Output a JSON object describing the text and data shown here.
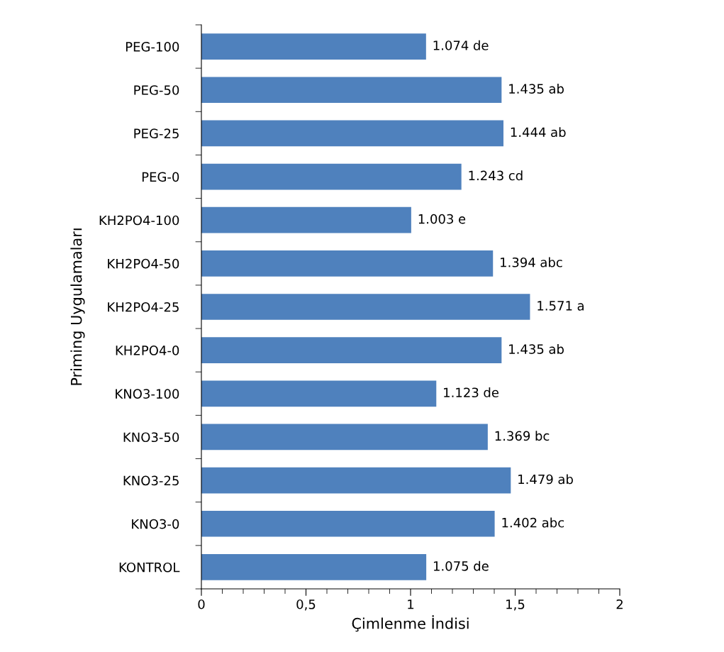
{
  "chart_data": {
    "type": "bar",
    "orientation": "horizontal",
    "xlabel": "Çimlenme İndisi",
    "ylabel": "Priming Uygulamaları",
    "categories": [
      "PEG-100",
      "PEG-50",
      "PEG-25",
      "PEG-0",
      "KH2PO4-100",
      "KH2PO4-50",
      "KH2PO4-25",
      "KH2PO4-0",
      "KNO3-100",
      "KNO3-50",
      "KNO3-25",
      "KNO3-0",
      "KONTROL"
    ],
    "values": [
      1.074,
      1.435,
      1.444,
      1.243,
      1.003,
      1.394,
      1.571,
      1.435,
      1.123,
      1.369,
      1.479,
      1.402,
      1.075
    ],
    "data_labels": true,
    "annotations": [
      "de",
      "ab",
      "ab",
      "cd",
      "e",
      "abc",
      "a",
      "ab",
      "de",
      "bc",
      "ab",
      "abc",
      "de"
    ],
    "color": "#4f81bd",
    "xlim": [
      0,
      2
    ],
    "xticks": [
      0,
      {
        "value": 0.1,
        "label": null
      },
      {
        "value": 0.2,
        "label": null
      },
      {
        "value": 0.3,
        "label": null
      },
      {
        "value": 0.4,
        "label": null
      },
      {
        "value": 0.5,
        "label": "0,5"
      },
      {
        "value": 0.6,
        "label": null
      },
      {
        "value": 0.7,
        "label": null
      },
      {
        "value": 0.8,
        "label": null
      },
      {
        "value": 0.9,
        "label": null
      },
      1,
      {
        "value": 1.1,
        "label": null
      },
      {
        "value": 1.2,
        "label": null
      },
      {
        "value": 1.3,
        "label": null
      },
      {
        "value": 1.4,
        "label": null
      },
      {
        "value": 1.5,
        "label": "1,5"
      },
      {
        "value": 1.6,
        "label": null
      },
      {
        "value": 1.7,
        "label": null
      },
      {
        "value": 1.8,
        "label": null
      },
      {
        "value": 1.9,
        "label": null
      },
      2
    ],
    "grid": false,
    "legend": false
  }
}
